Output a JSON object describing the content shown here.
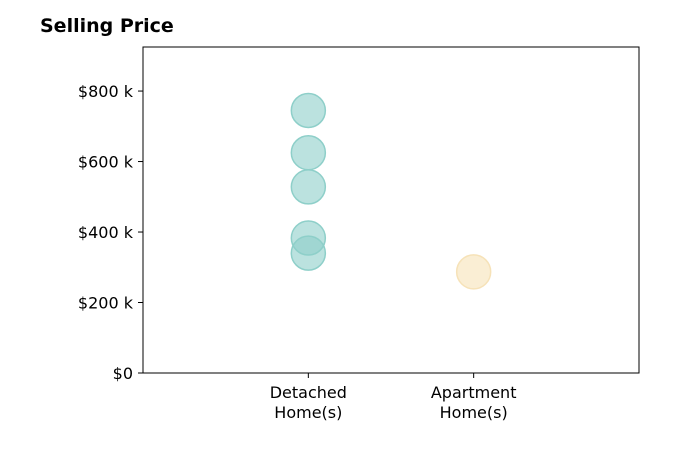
{
  "chart_data": {
    "type": "scatter",
    "title": "Selling Price",
    "xlabel": "",
    "ylabel": "",
    "categories": [
      "Detached\nHome(s)",
      "Apartment\nHome(s)"
    ],
    "yticks": [
      0,
      200,
      400,
      600,
      800
    ],
    "ytick_labels": [
      "$0",
      "$200 k",
      "$400 k",
      "$600 k",
      "$800 k"
    ],
    "ylim": [
      0,
      925
    ],
    "xlim": [
      -1,
      2
    ],
    "grid": false,
    "series": [
      {
        "category": "Detached\nHome(s)",
        "color": "#8ecfc9",
        "values": [
          745,
          625,
          528,
          383,
          340
        ]
      },
      {
        "category": "Apartment\nHome(s)",
        "color": "#f6e2b8",
        "values": [
          287
        ]
      }
    ]
  }
}
